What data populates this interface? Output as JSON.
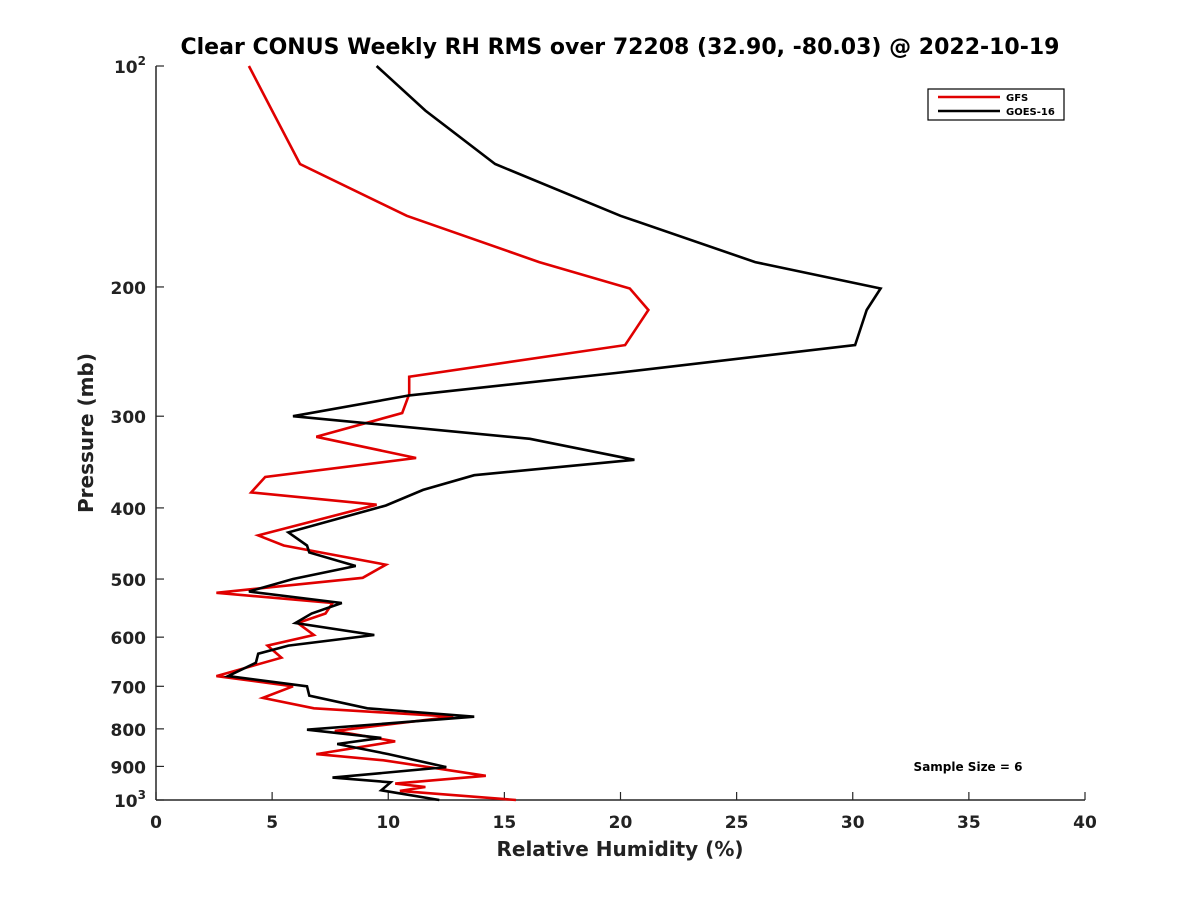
{
  "chart_data": {
    "type": "line",
    "title": "Clear CONUS Weekly RH RMS over 72208 (32.90, -80.03) @ 2022-10-19",
    "xlabel": "Relative Humidity (%)",
    "ylabel": "Pressure (mb)",
    "xlim": [
      0,
      40
    ],
    "ylim": [
      100,
      1000
    ],
    "y_scale": "log",
    "y_reversed": true,
    "xticks": [
      0,
      5,
      10,
      15,
      20,
      25,
      30,
      35,
      40
    ],
    "yticks": [
      {
        "value": 100,
        "base": "10",
        "exp": "2"
      },
      {
        "value": 200,
        "label": "200"
      },
      {
        "value": 300,
        "label": "300"
      },
      {
        "value": 400,
        "label": "400"
      },
      {
        "value": 500,
        "label": "500"
      },
      {
        "value": 600,
        "label": "600"
      },
      {
        "value": 700,
        "label": "700"
      },
      {
        "value": 800,
        "label": "800"
      },
      {
        "value": 900,
        "label": "900"
      },
      {
        "value": 1000,
        "base": "10",
        "exp": "3"
      }
    ],
    "grid": false,
    "legend_position": "top-right",
    "annotation": "Sample Size = 6",
    "series": [
      {
        "name": "GFS",
        "color": "#e00000",
        "points": [
          [
            4.0,
            100
          ],
          [
            5.0,
            115
          ],
          [
            6.2,
            136
          ],
          [
            10.8,
            160
          ],
          [
            16.5,
            185
          ],
          [
            20.4,
            201
          ],
          [
            21.2,
            215
          ],
          [
            20.2,
            240
          ],
          [
            10.9,
            265
          ],
          [
            10.9,
            280
          ],
          [
            10.6,
            297
          ],
          [
            6.9,
            320
          ],
          [
            11.2,
            342
          ],
          [
            4.7,
            363
          ],
          [
            4.1,
            381
          ],
          [
            9.5,
            396
          ],
          [
            4.4,
            436
          ],
          [
            5.5,
            450
          ],
          [
            9.9,
            478
          ],
          [
            8.9,
            498
          ],
          [
            2.6,
            522
          ],
          [
            7.6,
            539
          ],
          [
            7.3,
            557
          ],
          [
            6.1,
            574
          ],
          [
            6.8,
            596
          ],
          [
            4.8,
            616
          ],
          [
            5.4,
            640
          ],
          [
            2.6,
            678
          ],
          [
            5.9,
            700
          ],
          [
            4.6,
            726
          ],
          [
            6.8,
            750
          ],
          [
            12.8,
            770
          ],
          [
            7.7,
            805
          ],
          [
            10.3,
            832
          ],
          [
            6.9,
            866
          ],
          [
            9.8,
            883
          ],
          [
            14.2,
            927
          ],
          [
            10.3,
            950
          ],
          [
            11.6,
            960
          ],
          [
            10.5,
            972
          ],
          [
            15.5,
            1000
          ]
        ]
      },
      {
        "name": "GOES-16",
        "color": "#000000",
        "points": [
          [
            9.5,
            100
          ],
          [
            11.6,
            115
          ],
          [
            14.6,
            136
          ],
          [
            20.0,
            160
          ],
          [
            25.8,
            185
          ],
          [
            31.2,
            201
          ],
          [
            30.6,
            215
          ],
          [
            30.1,
            240
          ],
          [
            19.8,
            262
          ],
          [
            10.9,
            281
          ],
          [
            5.9,
            300
          ],
          [
            16.1,
            322
          ],
          [
            20.6,
            344
          ],
          [
            13.7,
            361
          ],
          [
            11.5,
            378
          ],
          [
            9.9,
            397
          ],
          [
            5.7,
            432
          ],
          [
            6.5,
            450
          ],
          [
            6.6,
            460
          ],
          [
            8.6,
            480
          ],
          [
            5.9,
            500
          ],
          [
            4.0,
            520
          ],
          [
            8.0,
            539
          ],
          [
            6.7,
            557
          ],
          [
            6.0,
            574
          ],
          [
            9.4,
            596
          ],
          [
            5.7,
            616
          ],
          [
            4.4,
            632
          ],
          [
            4.3,
            650
          ],
          [
            3.1,
            678
          ],
          [
            6.5,
            700
          ],
          [
            6.6,
            721
          ],
          [
            9.1,
            750
          ],
          [
            13.7,
            770
          ],
          [
            6.5,
            802
          ],
          [
            9.7,
            823
          ],
          [
            7.8,
            839
          ],
          [
            10.0,
            866
          ],
          [
            12.5,
            902
          ],
          [
            7.6,
            932
          ],
          [
            10.1,
            946
          ],
          [
            9.7,
            970
          ],
          [
            12.2,
            1000
          ]
        ]
      }
    ]
  }
}
